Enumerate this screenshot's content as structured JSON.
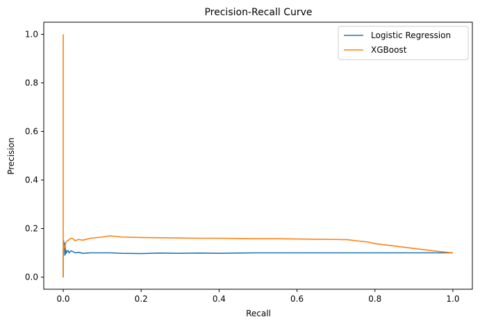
{
  "chart_data": {
    "type": "line",
    "title": "Precision-Recall Curve",
    "xlabel": "Recall",
    "ylabel": "Precision",
    "xlim": [
      -0.05,
      1.05
    ],
    "ylim": [
      -0.05,
      1.05
    ],
    "xticks": [
      0.0,
      0.2,
      0.4,
      0.6,
      0.8,
      1.0
    ],
    "xtick_labels": [
      "0.0",
      "0.2",
      "0.4",
      "0.6",
      "0.8",
      "1.0"
    ],
    "yticks": [
      0.0,
      0.2,
      0.4,
      0.6,
      0.8,
      1.0
    ],
    "ytick_labels": [
      "0.0",
      "0.2",
      "0.4",
      "0.6",
      "0.8",
      "1.0"
    ],
    "grid": false,
    "legend_position": "top-right",
    "series": [
      {
        "name": "Logistic Regression",
        "color": "#1f77b4",
        "x": [
          0.0,
          0.0,
          0.001,
          0.002,
          0.003,
          0.004,
          0.005,
          0.006,
          0.007,
          0.008,
          0.01,
          0.012,
          0.015,
          0.02,
          0.025,
          0.03,
          0.04,
          0.05,
          0.07,
          0.1,
          0.12,
          0.15,
          0.2,
          0.25,
          0.3,
          0.35,
          0.4,
          0.45,
          0.5,
          0.55,
          0.6,
          0.65,
          0.7,
          0.75,
          0.8,
          0.85,
          0.9,
          0.95,
          1.0
        ],
        "y": [
          0.0,
          0.1,
          0.15,
          0.12,
          0.14,
          0.09,
          0.13,
          0.095,
          0.11,
          0.1,
          0.105,
          0.11,
          0.1,
          0.108,
          0.105,
          0.1,
          0.102,
          0.098,
          0.1,
          0.1,
          0.1,
          0.098,
          0.097,
          0.099,
          0.098,
          0.099,
          0.098,
          0.099,
          0.1,
          0.1,
          0.1,
          0.1,
          0.1,
          0.1,
          0.1,
          0.1,
          0.1,
          0.1,
          0.1
        ]
      },
      {
        "name": "XGBoost",
        "color": "#ff7f0e",
        "x": [
          0.0,
          0.0,
          0.0,
          0.001,
          0.002,
          0.004,
          0.006,
          0.008,
          0.01,
          0.012,
          0.015,
          0.02,
          0.025,
          0.03,
          0.04,
          0.05,
          0.07,
          0.1,
          0.12,
          0.15,
          0.2,
          0.25,
          0.3,
          0.35,
          0.4,
          0.45,
          0.5,
          0.55,
          0.6,
          0.65,
          0.7,
          0.73,
          0.75,
          0.78,
          0.8,
          0.85,
          0.9,
          0.95,
          1.0
        ],
        "y": [
          1.0,
          0.0,
          0.12,
          0.11,
          0.13,
          0.12,
          0.14,
          0.145,
          0.15,
          0.15,
          0.155,
          0.16,
          0.158,
          0.15,
          0.155,
          0.152,
          0.16,
          0.165,
          0.17,
          0.165,
          0.163,
          0.162,
          0.161,
          0.16,
          0.16,
          0.159,
          0.158,
          0.158,
          0.157,
          0.156,
          0.155,
          0.154,
          0.15,
          0.145,
          0.138,
          0.128,
          0.118,
          0.108,
          0.1
        ]
      }
    ]
  }
}
